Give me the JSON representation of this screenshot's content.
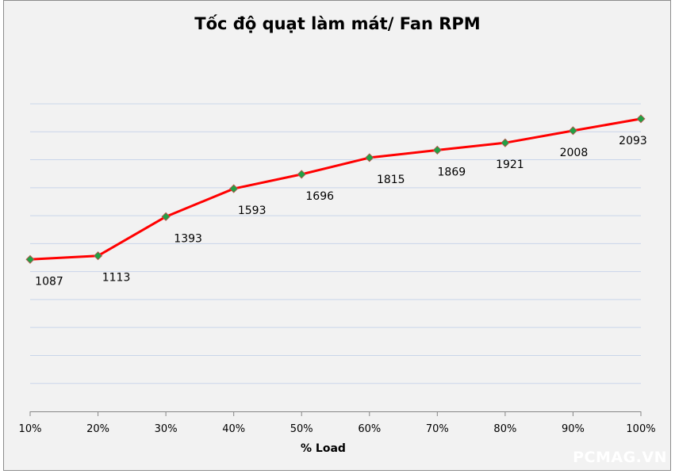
{
  "chart_data": {
    "type": "line",
    "title": "Tốc độ quạt làm mát/ Fan RPM",
    "xlabel": "% Load",
    "ylabel": "",
    "categories": [
      "10%",
      "20%",
      "30%",
      "40%",
      "50%",
      "60%",
      "70%",
      "80%",
      "90%",
      "100%"
    ],
    "series": [
      {
        "name": "Fan RPM",
        "values": [
          1087,
          1113,
          1393,
          1593,
          1696,
          1815,
          1869,
          1921,
          2008,
          2093
        ],
        "color": "#ff0000",
        "marker_color": "#22a045"
      }
    ],
    "ylim": [
      0,
      2200
    ],
    "y_grid_step": 200,
    "grid": true,
    "legend": "none",
    "gridline_color": "#c9d5ea"
  },
  "watermark": "PCMAG.VN"
}
